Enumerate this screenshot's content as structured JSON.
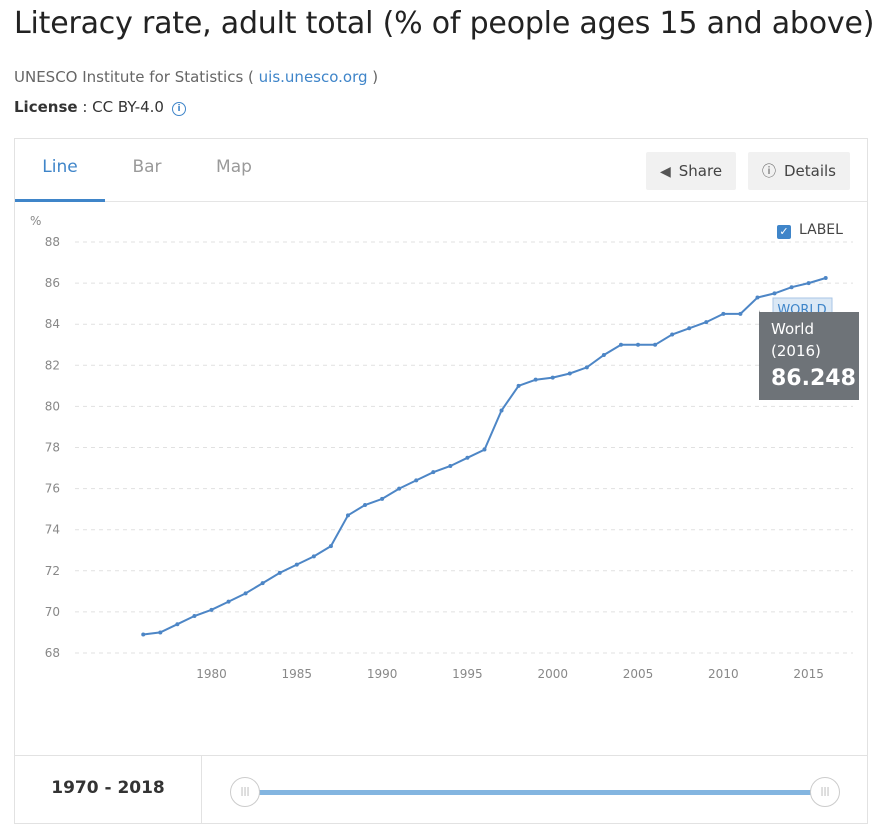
{
  "header": {
    "title": "Literacy rate, adult total (% of people ages 15 and above)",
    "source_prefix": "UNESCO Institute for Statistics ( ",
    "source_link": "uis.unesco.org",
    "source_suffix": " )",
    "license_label": "License",
    "license_value": " : CC BY-4.0"
  },
  "tabs": {
    "line": "Line",
    "bar": "Bar",
    "map": "Map"
  },
  "buttons": {
    "share": "Share",
    "details": "Details"
  },
  "label_toggle": "LABEL",
  "tooltip": {
    "series": "World",
    "year": "(2016)",
    "value": "86.248",
    "label": "WORLD"
  },
  "range": {
    "text": "1970 - 2018"
  },
  "colors": {
    "accent": "#3f85c9",
    "line": "#4d86c6",
    "grid": "#e1e1e1",
    "tooltip_bg": "#6e7378"
  },
  "chart_data": {
    "type": "line",
    "title": "",
    "xlabel": "",
    "ylabel": "%",
    "ylim": [
      68,
      88
    ],
    "yticks": [
      68,
      70,
      72,
      74,
      76,
      78,
      80,
      82,
      84,
      86,
      88
    ],
    "xticks": [
      1980,
      1985,
      1990,
      1995,
      2000,
      2005,
      2010,
      2015
    ],
    "grid": true,
    "series": [
      {
        "name": "WORLD",
        "x": [
          1976,
          1977,
          1978,
          1979,
          1980,
          1981,
          1982,
          1983,
          1984,
          1985,
          1986,
          1987,
          1988,
          1989,
          1990,
          1991,
          1992,
          1993,
          1994,
          1995,
          1996,
          1997,
          1998,
          1999,
          2000,
          2001,
          2002,
          2003,
          2004,
          2005,
          2006,
          2007,
          2008,
          2009,
          2010,
          2011,
          2012,
          2013,
          2014,
          2015,
          2016
        ],
        "y": [
          68.9,
          69.0,
          69.4,
          69.8,
          70.1,
          70.5,
          70.9,
          71.4,
          71.9,
          72.3,
          72.7,
          73.2,
          74.7,
          75.2,
          75.5,
          76.0,
          76.4,
          76.8,
          77.1,
          77.5,
          77.9,
          79.8,
          81.0,
          81.3,
          81.4,
          81.6,
          81.9,
          82.5,
          83.0,
          83.0,
          83.0,
          83.5,
          83.8,
          84.1,
          84.5,
          84.5,
          85.3,
          85.5,
          85.8,
          86.0,
          86.248
        ]
      }
    ]
  }
}
